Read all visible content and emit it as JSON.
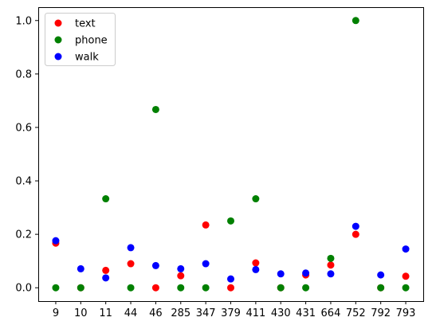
{
  "chart_data": {
    "type": "scatter",
    "title": "",
    "xlabel": "",
    "ylabel": "",
    "categories": [
      "9",
      "10",
      "11",
      "44",
      "46",
      "285",
      "347",
      "379",
      "411",
      "430",
      "431",
      "664",
      "752",
      "792",
      "793"
    ],
    "ylim": [
      -0.05,
      1.05
    ],
    "yticks": [
      0.0,
      0.2,
      0.4,
      0.6,
      0.8,
      1.0
    ],
    "ytick_labels": [
      "0.0",
      "0.2",
      "0.4",
      "0.6",
      "0.8",
      "1.0"
    ],
    "grid": false,
    "legend_position": "top-left",
    "series": [
      {
        "name": "text",
        "color": "#ff0000",
        "values": [
          0.167,
          0.0,
          0.065,
          0.09,
          0.0,
          0.045,
          0.235,
          0.0,
          0.093,
          0.0,
          0.048,
          0.085,
          0.2,
          0.0,
          0.043
        ]
      },
      {
        "name": "phone",
        "color": "#008000",
        "values": [
          0.0,
          0.0,
          0.333,
          0.0,
          0.667,
          0.0,
          0.0,
          0.25,
          0.333,
          0.0,
          0.0,
          0.11,
          1.0,
          0.0,
          0.0
        ]
      },
      {
        "name": "walk",
        "color": "#0000ff",
        "values": [
          0.176,
          0.071,
          0.037,
          0.15,
          0.083,
          0.071,
          0.09,
          0.033,
          0.068,
          0.052,
          0.055,
          0.052,
          0.23,
          0.048,
          0.145
        ]
      }
    ]
  }
}
